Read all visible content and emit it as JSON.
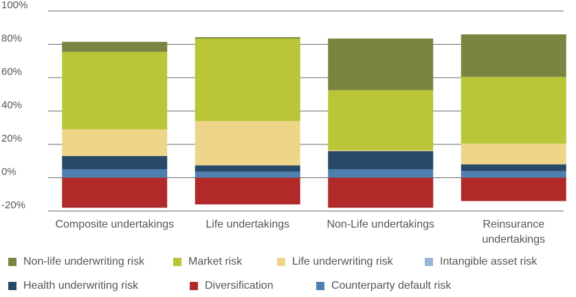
{
  "chart_data": {
    "type": "stacked_bar",
    "categories": [
      "Composite undertakings",
      "Life undertakings",
      "Non-Life undertakings",
      "Reinsurance undertakings"
    ],
    "series": [
      {
        "name": "Non-life underwriting risk",
        "color": "#7b8541",
        "values": [
          6,
          0.8,
          31,
          25.5
        ]
      },
      {
        "name": "Market risk",
        "color": "#b8c637",
        "values": [
          46.5,
          49.5,
          36,
          40
        ]
      },
      {
        "name": "Life underwriting risk",
        "color": "#edd58a",
        "values": [
          16,
          26.6,
          0.5,
          12.5
        ]
      },
      {
        "name": "Intangible asset risk",
        "color": "#9ab8d6",
        "values": [
          0,
          0,
          0,
          0
        ]
      },
      {
        "name": "Health underwriting risk",
        "color": "#284a68",
        "values": [
          8,
          3.7,
          11,
          4
        ]
      },
      {
        "name": "Diversification",
        "color": "#b02a2a",
        "values": [
          -18,
          -16,
          -18,
          -14
        ]
      },
      {
        "name": "Counterparty default risk",
        "color": "#4f7fae",
        "values": [
          5,
          3.7,
          5,
          4
        ]
      }
    ],
    "ylim": [
      -20,
      100
    ],
    "yticks": [
      {
        "value": -20,
        "label": "-20%"
      },
      {
        "value": 0,
        "label": "0%"
      },
      {
        "value": 20,
        "label": "20%"
      },
      {
        "value": 40,
        "label": "40%"
      },
      {
        "value": 60,
        "label": "60%"
      },
      {
        "value": 80,
        "label": "80%"
      },
      {
        "value": 100,
        "label": "100%"
      }
    ],
    "grid": true
  }
}
